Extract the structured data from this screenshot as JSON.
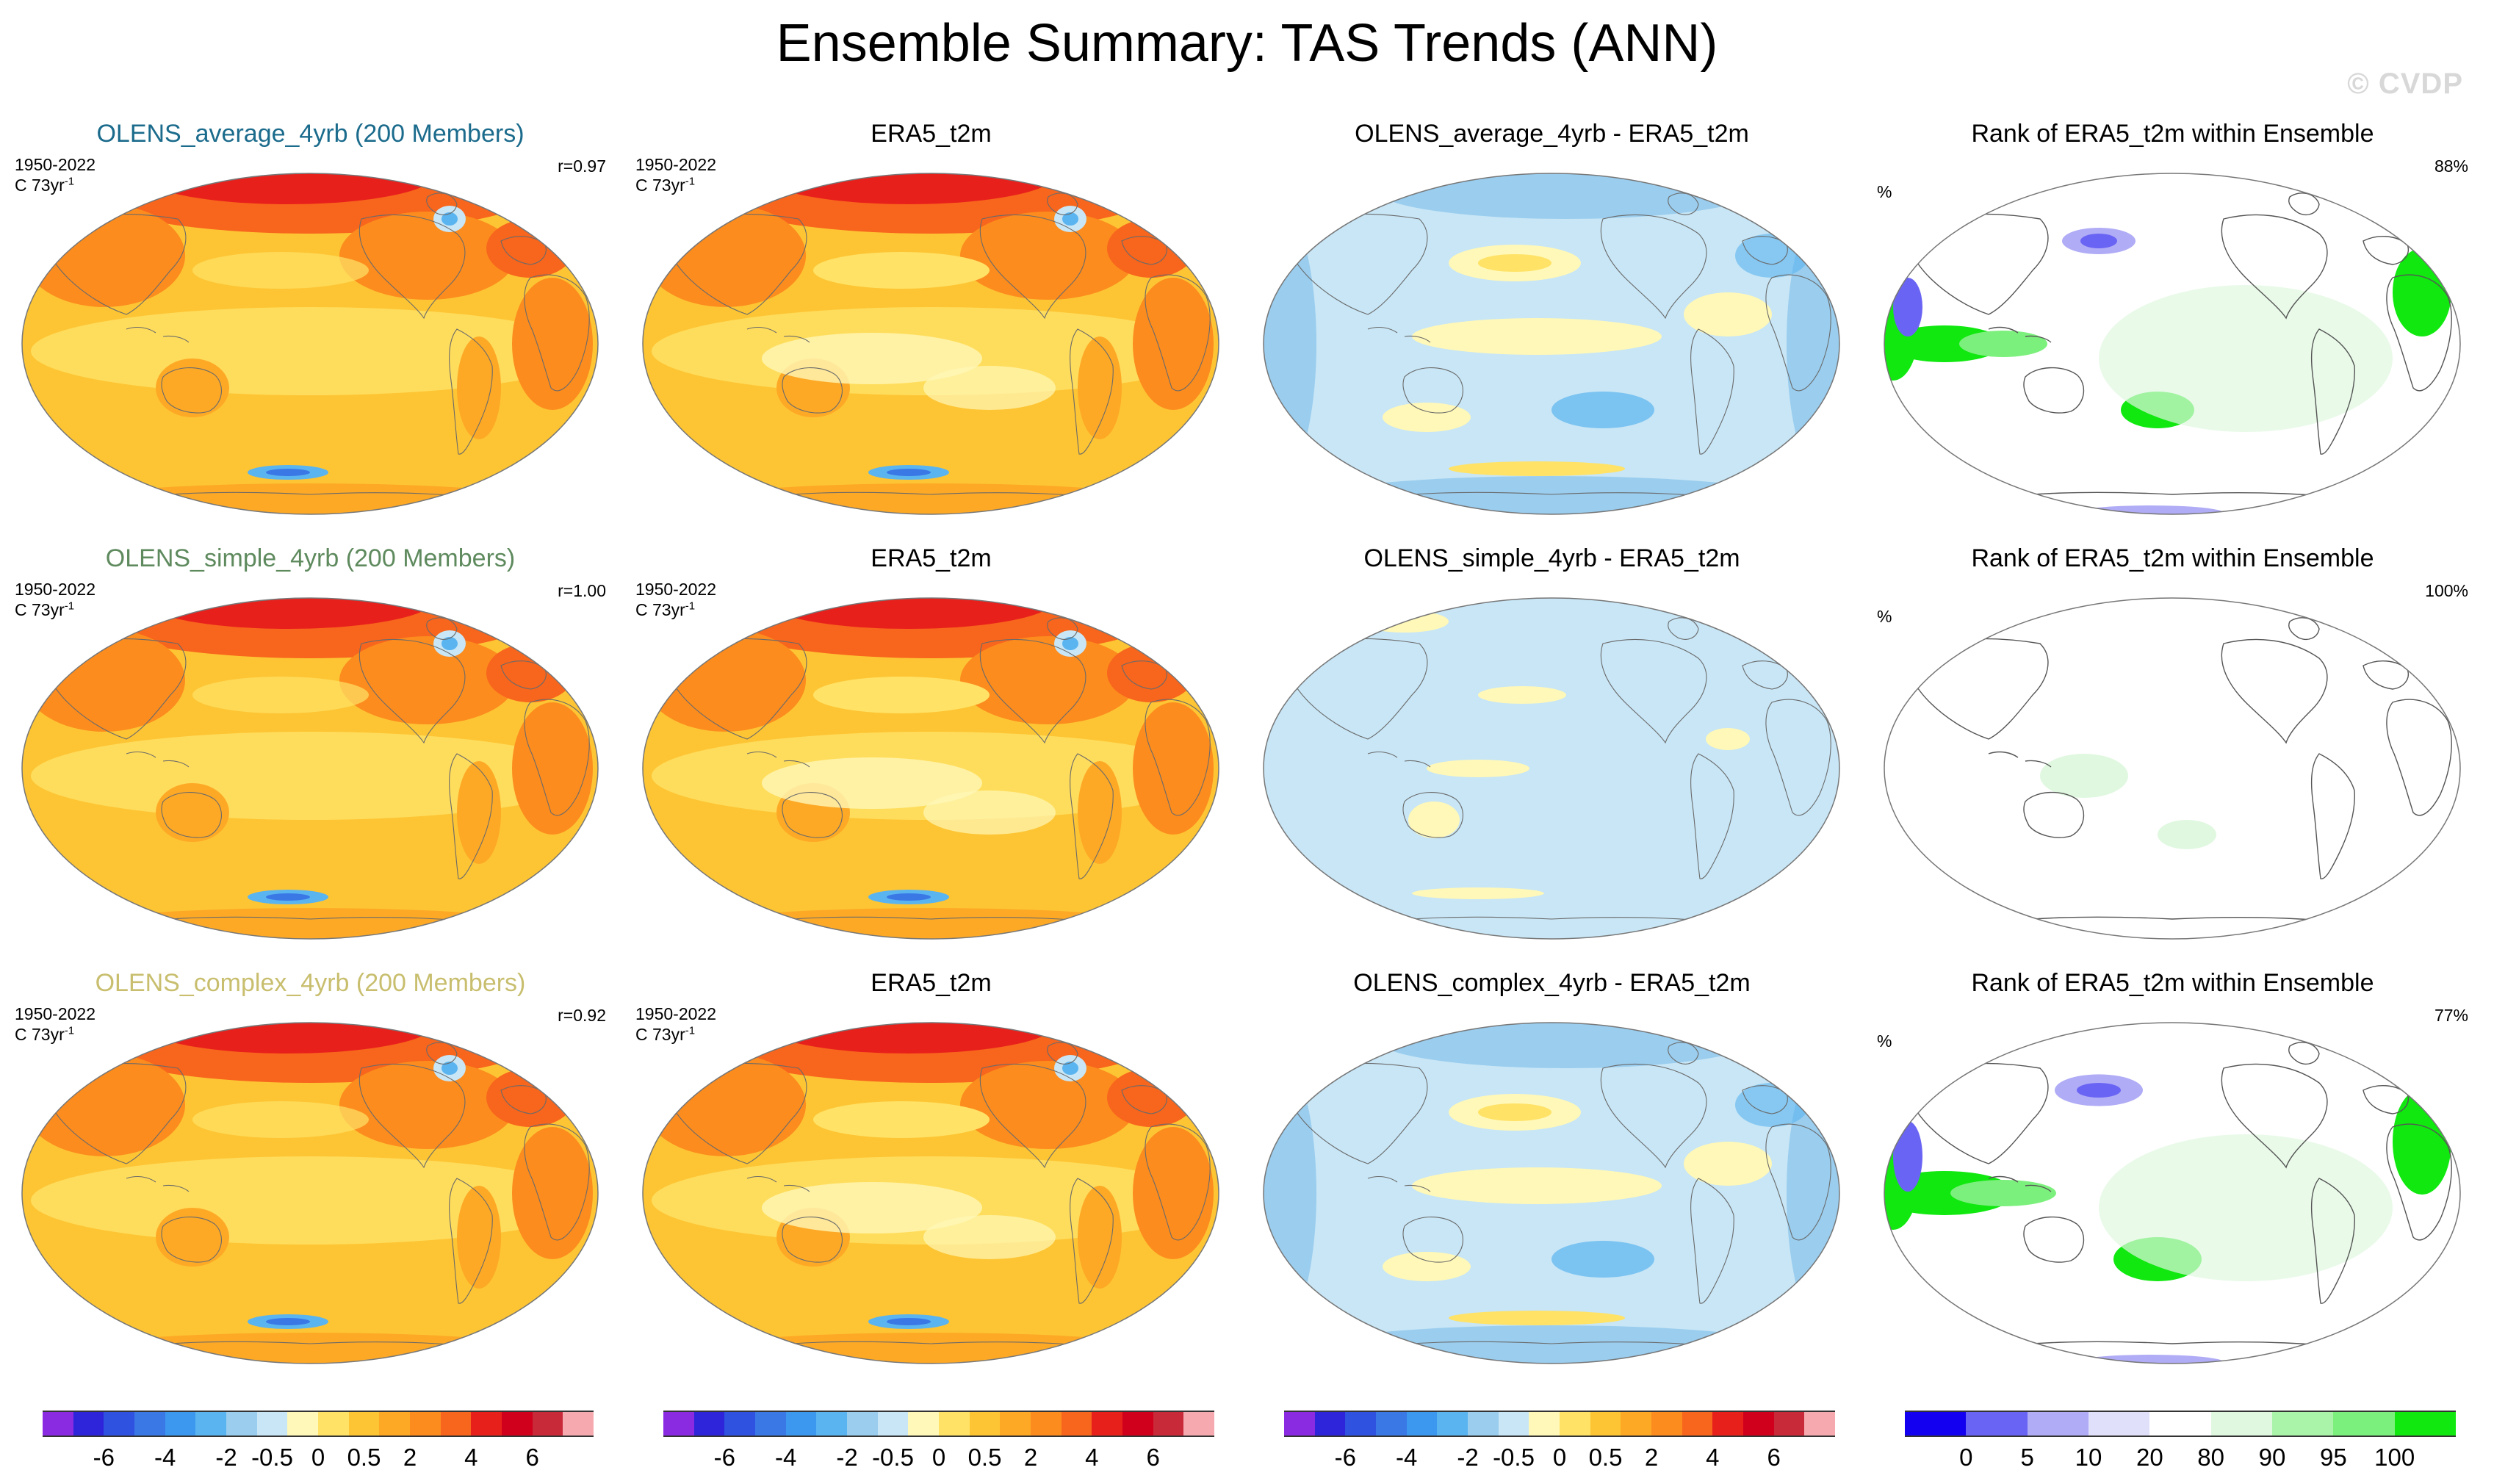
{
  "title": "Ensemble Summary: TAS Trends (ANN)",
  "watermark": "© CVDP",
  "colors": {
    "diverging": [
      "#8a2be2",
      "#2e24d9",
      "#3052e0",
      "#3a78e6",
      "#3c98ee",
      "#5ab4f0",
      "#9acdee",
      "#c8e6f6",
      "#fff8b8",
      "#ffe266",
      "#fdc534",
      "#fda926",
      "#fc8c1e",
      "#f8651c",
      "#e8201c",
      "#d0001c",
      "#c92a3a",
      "#f6aab0"
    ],
    "rank": [
      "#1400f0",
      "#6a64f4",
      "#b0acf6",
      "#e0e0fa",
      "#ffffff",
      "#e0f8e0",
      "#aaf4aa",
      "#7cf07c",
      "#10e810"
    ],
    "title_blue": "#1b6b8c",
    "title_green": "#5e8a5e",
    "title_khaki": "#c8be6e"
  },
  "rows": [
    {
      "member_title": "OLENS_average_4yrb (200 Members)",
      "obs_title": "ERA5_t2m",
      "diff_title": "OLENS_average_4yrb - ERA5_t2m",
      "rank_title": "Rank of ERA5_t2m within Ensemble",
      "period": "1950-2022",
      "units": "C 73yr",
      "units_sup": "-1",
      "r_value": "r=0.97",
      "rank_unit": "%",
      "rank_pct": "88%"
    },
    {
      "member_title": "OLENS_simple_4yrb (200 Members)",
      "obs_title": "ERA5_t2m",
      "diff_title": "OLENS_simple_4yrb - ERA5_t2m",
      "rank_title": "Rank of ERA5_t2m within Ensemble",
      "period": "1950-2022",
      "units": "C 73yr",
      "units_sup": "-1",
      "r_value": "r=1.00",
      "rank_unit": "%",
      "rank_pct": "100%"
    },
    {
      "member_title": "OLENS_complex_4yrb (200 Members)",
      "obs_title": "ERA5_t2m",
      "diff_title": "OLENS_complex_4yrb - ERA5_t2m",
      "rank_title": "Rank of ERA5_t2m within Ensemble",
      "period": "1950-2022",
      "units": "C 73yr",
      "units_sup": "-1",
      "r_value": "r=0.92",
      "rank_unit": "%",
      "rank_pct": "77%"
    }
  ],
  "colorbars": {
    "trend_labels": [
      "-6",
      "-4",
      "-2",
      "-0.5",
      "0",
      "0.5",
      "2",
      "4",
      "6"
    ],
    "rank_labels": [
      "0",
      "5",
      "10",
      "20",
      "80",
      "90",
      "95",
      "100"
    ]
  },
  "chart_data": {
    "type": "heatmap",
    "title": "Ensemble Summary: TAS Trends (ANN)",
    "variable": "TAS trend",
    "season": "ANN",
    "period": "1950-2022",
    "units": "C 73yr-1",
    "panels": [
      {
        "row": 1,
        "col": 1,
        "title": "OLENS_average_4yrb (200 Members)",
        "pattern_correlation": 0.97
      },
      {
        "row": 1,
        "col": 2,
        "title": "ERA5_t2m"
      },
      {
        "row": 1,
        "col": 3,
        "title": "OLENS_average_4yrb - ERA5_t2m"
      },
      {
        "row": 1,
        "col": 4,
        "title": "Rank of ERA5_t2m within Ensemble",
        "percent_within_10_90": 88
      },
      {
        "row": 2,
        "col": 1,
        "title": "OLENS_simple_4yrb (200 Members)",
        "pattern_correlation": 1.0
      },
      {
        "row": 2,
        "col": 2,
        "title": "ERA5_t2m"
      },
      {
        "row": 2,
        "col": 3,
        "title": "OLENS_simple_4yrb - ERA5_t2m"
      },
      {
        "row": 2,
        "col": 4,
        "title": "Rank of ERA5_t2m within Ensemble",
        "percent_within_10_90": 100
      },
      {
        "row": 3,
        "col": 1,
        "title": "OLENS_complex_4yrb (200 Members)",
        "pattern_correlation": 0.92
      },
      {
        "row": 3,
        "col": 2,
        "title": "ERA5_t2m"
      },
      {
        "row": 3,
        "col": 3,
        "title": "OLENS_complex_4yrb - ERA5_t2m"
      },
      {
        "row": 3,
        "col": 4,
        "title": "Rank of ERA5_t2m within Ensemble",
        "percent_within_10_90": 77
      }
    ],
    "trend_contour_levels": [
      -6,
      -5,
      -4,
      -3,
      -2,
      -1,
      -0.5,
      -0.25,
      0,
      0.25,
      0.5,
      1,
      2,
      3,
      4,
      5,
      6
    ],
    "rank_levels": [
      0,
      5,
      10,
      20,
      80,
      90,
      95,
      100
    ]
  }
}
